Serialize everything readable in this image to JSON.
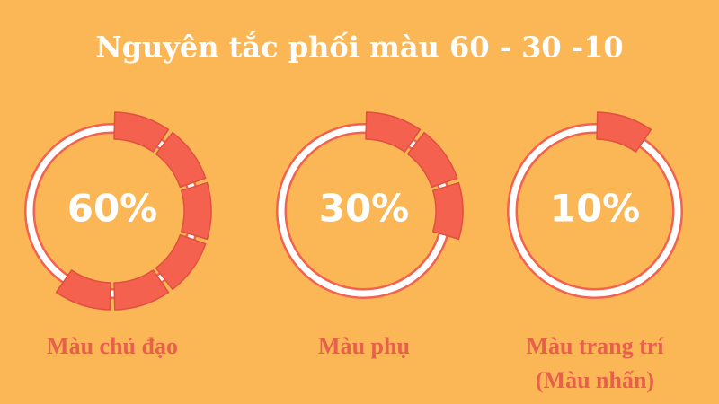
{
  "title": "Nguyên tắc phối màu 60 - 30 -10",
  "chart_data": [
    {
      "type": "gauge",
      "values": [
        60
      ],
      "value_labels": [
        "60%"
      ],
      "caption": [
        "Màu chủ đạo"
      ],
      "color": "#f4614f"
    },
    {
      "type": "gauge",
      "values": [
        30
      ],
      "value_labels": [
        "30%"
      ],
      "caption": [
        "Màu phụ"
      ],
      "color": "#f4614f"
    },
    {
      "type": "gauge",
      "values": [
        10
      ],
      "value_labels": [
        "10%"
      ],
      "caption": [
        "Màu trang trí",
        "(Màu nhấn)"
      ],
      "color": "#f4614f"
    }
  ]
}
